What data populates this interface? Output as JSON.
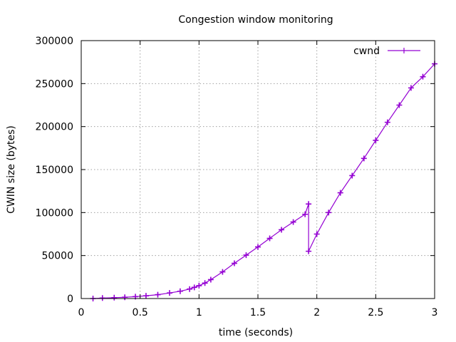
{
  "chart_data": {
    "type": "line",
    "title": "Congestion window monitoring",
    "xlabel": "time (seconds)",
    "ylabel": "CWIN size (bytes)",
    "xlim": [
      0,
      3
    ],
    "ylim": [
      0,
      300000
    ],
    "xticks": [
      0,
      0.5,
      1,
      1.5,
      2,
      2.5,
      3
    ],
    "xtick_labels": [
      "0",
      "0.5",
      "1",
      "1.5",
      "2",
      "2.5",
      "3"
    ],
    "yticks": [
      0,
      50000,
      100000,
      150000,
      200000,
      250000,
      300000
    ],
    "ytick_labels": [
      "0",
      "50000",
      "100000",
      "150000",
      "200000",
      "250000",
      "300000"
    ],
    "grid": true,
    "legend_position": "top-right",
    "series": [
      {
        "name": "cwnd",
        "color": "#9400d3",
        "marker": "plus",
        "x": [
          0.1,
          0.18,
          0.28,
          0.37,
          0.46,
          0.55,
          0.65,
          0.75,
          0.84,
          0.92,
          0.96,
          1.0,
          1.05,
          1.1,
          1.2,
          1.3,
          1.4,
          1.5,
          1.6,
          1.7,
          1.8,
          1.9,
          1.93,
          1.93,
          2.0,
          2.1,
          2.2,
          2.3,
          2.4,
          2.5,
          2.6,
          2.7,
          2.8,
          2.9,
          3.0
        ],
        "y": [
          0,
          600,
          1000,
          1500,
          2200,
          3200,
          4500,
          6500,
          8500,
          11000,
          13000,
          15000,
          18000,
          22000,
          31000,
          41000,
          50500,
          60000,
          70000,
          80000,
          89000,
          98000,
          110000,
          55000,
          75000,
          100000,
          123000,
          143000,
          163000,
          184000,
          205000,
          225000,
          245000,
          258000,
          273000
        ]
      }
    ]
  }
}
